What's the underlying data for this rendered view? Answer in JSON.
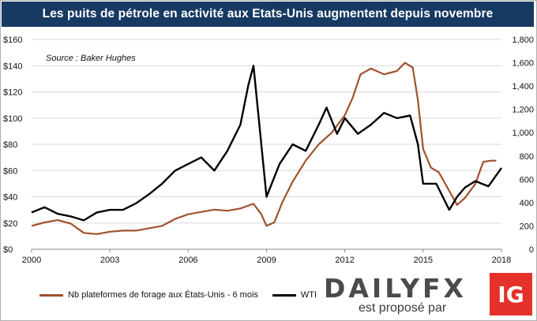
{
  "header": {
    "title": "Les puits de pétrole en activité aux Etats-Unis augmentent depuis novembre"
  },
  "source_note": "Source : Baker Hughes",
  "colors": {
    "title_bg": "#173a63",
    "rigs": "#a0522d",
    "wti": "#000000",
    "grid": "#d9d9d9",
    "ig_red": "#e4322b"
  },
  "brand": {
    "name_main": "DAILY",
    "name_fx": "FX",
    "tagline": "est proposé par",
    "badge": "IG"
  },
  "chart_data": {
    "type": "line",
    "title": "Les puits de pétrole en activité aux Etats-Unis augmentent depuis novembre",
    "x_ticks": [
      "2000",
      "2003",
      "2006",
      "2009",
      "2012",
      "2015",
      "2018"
    ],
    "xlim": [
      2000,
      2018
    ],
    "y_left": {
      "ticks": [
        "$0",
        "$20",
        "$40",
        "$60",
        "$80",
        "$100",
        "$120",
        "$140",
        "$160"
      ],
      "lim": [
        0,
        160
      ]
    },
    "y_right": {
      "ticks": [
        "0",
        "200",
        "400",
        "600",
        "800",
        "1,000",
        "1,200",
        "1,400",
        "1,600",
        "1,800"
      ],
      "lim": [
        0,
        1800
      ]
    },
    "legend_position": "bottom-left",
    "grid": "horizontal",
    "series": [
      {
        "name": "Nb plateformes de forage aux États-Unis - 6 mois",
        "axis": "right",
        "x": [
          2000,
          2000.5,
          2001,
          2001.5,
          2002,
          2002.5,
          2003,
          2003.5,
          2004,
          2004.5,
          2005,
          2005.5,
          2006,
          2006.5,
          2007,
          2007.5,
          2008,
          2008.5,
          2008.8,
          2009,
          2009.3,
          2009.6,
          2010,
          2010.5,
          2011,
          2011.5,
          2012,
          2012.3,
          2012.6,
          2013,
          2013.5,
          2014,
          2014.3,
          2014.6,
          2014.8,
          2015,
          2015.3,
          2015.6,
          2016,
          2016.3,
          2016.6,
          2017,
          2017.3,
          2017.6,
          2017.8
        ],
        "y": [
          200,
          230,
          250,
          220,
          140,
          130,
          150,
          160,
          160,
          180,
          200,
          260,
          300,
          320,
          340,
          330,
          350,
          390,
          300,
          200,
          230,
          400,
          580,
          760,
          900,
          1000,
          1150,
          1300,
          1500,
          1550,
          1500,
          1530,
          1600,
          1560,
          1280,
          860,
          700,
          660,
          500,
          380,
          440,
          560,
          750,
          760,
          760
        ]
      },
      {
        "name": "WTI",
        "axis": "left",
        "x": [
          2000,
          2000.5,
          2001,
          2001.5,
          2002,
          2002.5,
          2003,
          2003.5,
          2004,
          2004.5,
          2005,
          2005.5,
          2006,
          2006.5,
          2007,
          2007.5,
          2008,
          2008.3,
          2008.5,
          2008.7,
          2009,
          2009.5,
          2010,
          2010.5,
          2011,
          2011.3,
          2011.7,
          2012,
          2012.5,
          2013,
          2013.5,
          2014,
          2014.5,
          2014.8,
          2015,
          2015.5,
          2016,
          2016.3,
          2016.6,
          2017,
          2017.5,
          2018
        ],
        "y": [
          28,
          32,
          27,
          25,
          22,
          28,
          30,
          30,
          35,
          42,
          50,
          60,
          65,
          70,
          60,
          75,
          95,
          125,
          140,
          100,
          40,
          65,
          80,
          75,
          95,
          108,
          88,
          100,
          88,
          95,
          104,
          100,
          102,
          80,
          50,
          50,
          30,
          40,
          47,
          52,
          48,
          62
        ]
      }
    ]
  }
}
